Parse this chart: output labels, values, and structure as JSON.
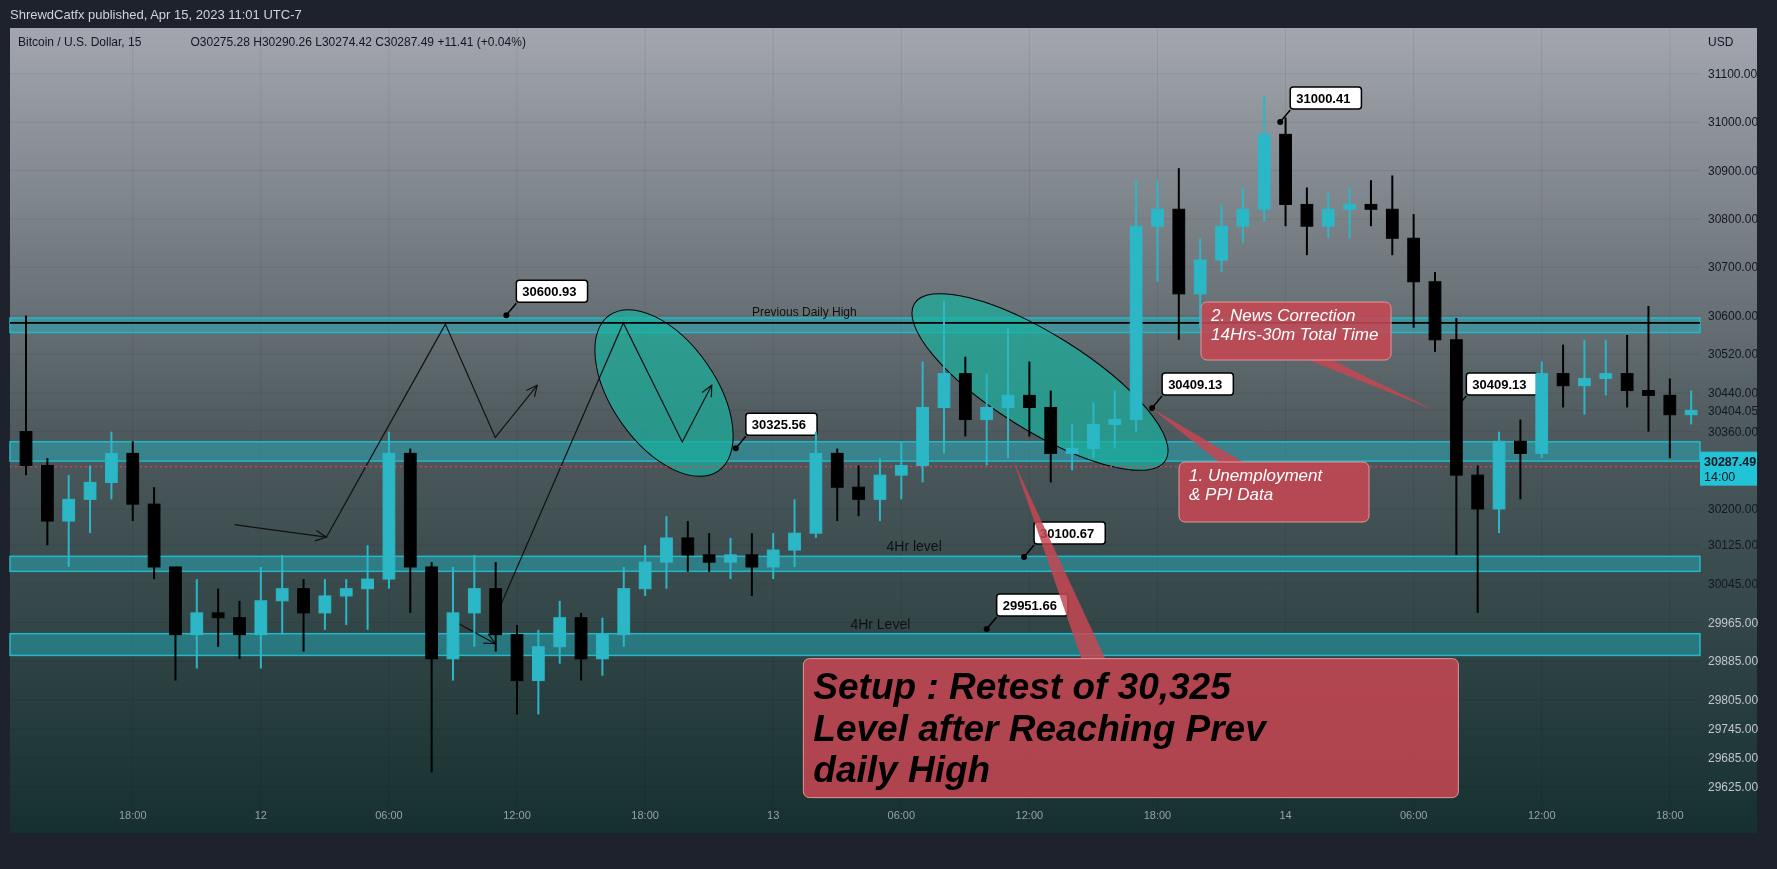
{
  "chart_data": {
    "type": "candlestick",
    "title": "Bitcoin / U.S. Dollar, 15",
    "subtitle": "O30275.28 H30290.26 L30274.42 C30287.49 +11.41 (+0.04%)",
    "ylabel": "USD",
    "x": [
      "2023-04-11T13:00",
      "2023-04-11T14:00",
      "2023-04-11T15:00",
      "2023-04-11T16:00",
      "2023-04-11T17:00",
      "2023-04-11T18:00",
      "2023-04-11T19:00",
      "2023-04-11T20:00",
      "2023-04-11T21:00",
      "2023-04-11T22:00",
      "2023-04-11T23:00",
      "2023-04-12T00:00",
      "2023-04-12T01:00",
      "2023-04-12T02:00",
      "2023-04-12T03:00",
      "2023-04-12T04:00",
      "2023-04-12T05:00",
      "2023-04-12T06:00",
      "2023-04-12T07:00",
      "2023-04-12T08:00",
      "2023-04-12T09:00",
      "2023-04-12T10:00",
      "2023-04-12T11:00",
      "2023-04-12T12:00",
      "2023-04-12T13:00",
      "2023-04-12T14:00",
      "2023-04-12T15:00",
      "2023-04-12T16:00",
      "2023-04-12T17:00",
      "2023-04-12T18:00",
      "2023-04-12T19:00",
      "2023-04-12T20:00",
      "2023-04-12T21:00",
      "2023-04-12T22:00",
      "2023-04-12T23:00",
      "2023-04-13T00:00",
      "2023-04-13T01:00",
      "2023-04-13T02:00",
      "2023-04-13T03:00",
      "2023-04-13T04:00",
      "2023-04-13T05:00",
      "2023-04-13T06:00",
      "2023-04-13T07:00",
      "2023-04-13T08:00",
      "2023-04-13T09:00",
      "2023-04-13T10:00",
      "2023-04-13T11:00",
      "2023-04-13T12:00",
      "2023-04-13T13:00",
      "2023-04-13T14:00",
      "2023-04-13T15:00",
      "2023-04-13T16:00",
      "2023-04-13T17:00",
      "2023-04-13T18:00",
      "2023-04-13T19:00",
      "2023-04-13T20:00",
      "2023-04-13T21:00",
      "2023-04-13T22:00",
      "2023-04-13T23:00",
      "2023-04-14T00:00",
      "2023-04-14T01:00",
      "2023-04-14T02:00",
      "2023-04-14T03:00",
      "2023-04-14T04:00",
      "2023-04-14T05:00",
      "2023-04-14T06:00",
      "2023-04-14T07:00",
      "2023-04-14T08:00",
      "2023-04-14T09:00",
      "2023-04-14T10:00",
      "2023-04-14T11:00",
      "2023-04-14T12:00",
      "2023-04-14T13:00",
      "2023-04-14T14:00",
      "2023-04-14T15:00",
      "2023-04-14T16:00",
      "2023-04-14T17:00",
      "2023-04-14T18:00",
      "2023-04-14T19:00"
    ],
    "ohlc": [
      [
        30360,
        30600,
        30270,
        30290
      ],
      [
        30290,
        30305,
        30125,
        30175
      ],
      [
        30175,
        30270,
        30080,
        30220
      ],
      [
        30220,
        30290,
        30150,
        30255
      ],
      [
        30255,
        30360,
        30220,
        30315
      ],
      [
        30315,
        30340,
        30175,
        30210
      ],
      [
        30210,
        30245,
        30055,
        30080
      ],
      [
        30080,
        30080,
        29845,
        29940
      ],
      [
        29940,
        30055,
        29870,
        29985
      ],
      [
        29985,
        30035,
        29915,
        29975
      ],
      [
        29975,
        30010,
        29890,
        29940
      ],
      [
        29940,
        30080,
        29870,
        30010
      ],
      [
        30010,
        30105,
        29940,
        30035
      ],
      [
        30035,
        30055,
        29905,
        29985
      ],
      [
        29985,
        30055,
        29950,
        30020
      ],
      [
        30020,
        30055,
        29960,
        30035
      ],
      [
        30035,
        30125,
        29950,
        30055
      ],
      [
        30055,
        30360,
        30035,
        30315
      ],
      [
        30315,
        30325,
        29985,
        30080
      ],
      [
        30080,
        30090,
        29655,
        29890
      ],
      [
        29890,
        30080,
        29845,
        29985
      ],
      [
        29985,
        30105,
        29915,
        30035
      ],
      [
        30035,
        30090,
        29905,
        29940
      ],
      [
        29940,
        29960,
        29775,
        29845
      ],
      [
        29845,
        29950,
        29775,
        29915
      ],
      [
        29915,
        30010,
        29880,
        29975
      ],
      [
        29975,
        29985,
        29845,
        29890
      ],
      [
        29890,
        29975,
        29855,
        29940
      ],
      [
        29940,
        30080,
        29915,
        30035
      ],
      [
        30035,
        30125,
        30020,
        30090
      ],
      [
        30090,
        30185,
        30035,
        30140
      ],
      [
        30140,
        30175,
        30070,
        30105
      ],
      [
        30105,
        30150,
        30070,
        30090
      ],
      [
        30090,
        30140,
        30055,
        30105
      ],
      [
        30105,
        30150,
        30020,
        30080
      ],
      [
        30080,
        30150,
        30055,
        30115
      ],
      [
        30115,
        30220,
        30080,
        30150
      ],
      [
        30150,
        30360,
        30140,
        30315
      ],
      [
        30315,
        30325,
        30175,
        30245
      ],
      [
        30245,
        30290,
        30185,
        30220
      ],
      [
        30220,
        30305,
        30175,
        30270
      ],
      [
        30270,
        30340,
        30220,
        30290
      ],
      [
        30290,
        30505,
        30255,
        30410
      ],
      [
        30410,
        30630,
        30315,
        30480
      ],
      [
        30480,
        30515,
        30350,
        30385
      ],
      [
        30385,
        30480,
        30290,
        30410
      ],
      [
        30410,
        30575,
        30305,
        30435
      ],
      [
        30435,
        30505,
        30350,
        30410
      ],
      [
        30410,
        30445,
        30255,
        30315
      ],
      [
        30315,
        30375,
        30280,
        30325
      ],
      [
        30325,
        30420,
        30305,
        30375
      ],
      [
        30375,
        30445,
        30325,
        30385
      ],
      [
        30385,
        30880,
        30360,
        30785
      ],
      [
        30785,
        30880,
        30670,
        30820
      ],
      [
        30820,
        30905,
        30550,
        30645
      ],
      [
        30645,
        30760,
        30575,
        30715
      ],
      [
        30715,
        30830,
        30690,
        30785
      ],
      [
        30785,
        30865,
        30750,
        30820
      ],
      [
        30820,
        31055,
        30795,
        30975
      ],
      [
        30975,
        31010,
        30785,
        30830
      ],
      [
        30830,
        30865,
        30725,
        30785
      ],
      [
        30785,
        30855,
        30760,
        30820
      ],
      [
        30820,
        30865,
        30760,
        30830
      ],
      [
        30830,
        30880,
        30785,
        30820
      ],
      [
        30820,
        30890,
        30725,
        30760
      ],
      [
        30760,
        30810,
        30575,
        30670
      ],
      [
        30670,
        30690,
        30525,
        30550
      ],
      [
        30550,
        30595,
        30105,
        30270
      ],
      [
        30270,
        30290,
        29985,
        30200
      ],
      [
        30200,
        30360,
        30150,
        30340
      ],
      [
        30340,
        30385,
        30220,
        30315
      ],
      [
        30315,
        30505,
        30305,
        30480
      ],
      [
        30480,
        30540,
        30410,
        30455
      ],
      [
        30455,
        30550,
        30395,
        30470
      ],
      [
        30470,
        30550,
        30435,
        30480
      ],
      [
        30480,
        30560,
        30410,
        30445
      ],
      [
        30445,
        30620,
        30360,
        30435
      ],
      [
        30435,
        30470,
        30305,
        30395
      ],
      [
        30395,
        30445,
        30375,
        30404.05
      ]
    ],
    "colors": [
      "#000000",
      "#000000",
      "#2bb7c6",
      "#2bb7c6",
      "#2bb7c6",
      "#000000",
      "#000000",
      "#000000",
      "#2bb7c6",
      "#000000",
      "#000000",
      "#2bb7c6",
      "#2bb7c6",
      "#000000",
      "#2bb7c6",
      "#2bb7c6",
      "#2bb7c6",
      "#2bb7c6",
      "#000000",
      "#000000",
      "#2bb7c6",
      "#2bb7c6",
      "#000000",
      "#000000",
      "#2bb7c6",
      "#2bb7c6",
      "#000000",
      "#2bb7c6",
      "#2bb7c6",
      "#2bb7c6",
      "#2bb7c6",
      "#000000",
      "#000000",
      "#2bb7c6",
      "#000000",
      "#2bb7c6",
      "#2bb7c6",
      "#2bb7c6",
      "#000000",
      "#000000",
      "#2bb7c6",
      "#2bb7c6",
      "#2bb7c6",
      "#2bb7c6",
      "#000000",
      "#2bb7c6",
      "#2bb7c6",
      "#000000",
      "#000000",
      "#2bb7c6",
      "#2bb7c6",
      "#2bb7c6",
      "#2bb7c6",
      "#2bb7c6",
      "#000000",
      "#2bb7c6",
      "#2bb7c6",
      "#2bb7c6",
      "#2bb7c6",
      "#000000",
      "#000000",
      "#2bb7c6",
      "#2bb7c6",
      "#000000",
      "#000000",
      "#000000",
      "#000000",
      "#000000",
      "#000000",
      "#2bb7c6",
      "#000000",
      "#2bb7c6",
      "#000000",
      "#2bb7c6",
      "#2bb7c6",
      "#000000",
      "#000000",
      "#000000",
      "#2bb7c6"
    ],
    "xlim": [
      "2023-04-11T12:15",
      "2023-04-14T22:05"
    ],
    "xticks": [
      {
        "value": "2023-04-11T18:00",
        "label": "18:00"
      },
      {
        "value": "2023-04-12T00:00",
        "label": "12"
      },
      {
        "value": "2023-04-12T06:00",
        "label": "06:00"
      },
      {
        "value": "2023-04-12T12:00",
        "label": "12:00"
      },
      {
        "value": "2023-04-12T18:00",
        "label": "18:00"
      },
      {
        "value": "2023-04-13T00:00",
        "label": "13"
      },
      {
        "value": "2023-04-13T06:00",
        "label": "06:00"
      },
      {
        "value": "2023-04-13T12:00",
        "label": "12:00"
      },
      {
        "value": "2023-04-13T18:00",
        "label": "18:00"
      },
      {
        "value": "2023-04-14T00:00",
        "label": "14"
      },
      {
        "value": "2023-04-14T06:00",
        "label": "06:00"
      },
      {
        "value": "2023-04-14T12:00",
        "label": "12:00"
      },
      {
        "value": "2023-04-14T18:00",
        "label": "18:00"
      }
    ],
    "ylim": [
      29540,
      31195
    ],
    "yticks": [
      {
        "value": 29625,
        "label": "29625.00"
      },
      {
        "value": 29685,
        "label": "29685.00"
      },
      {
        "value": 29745,
        "label": "29745.00"
      },
      {
        "value": 29805,
        "label": "29805.00"
      },
      {
        "value": 29885,
        "label": "29885.00"
      },
      {
        "value": 29965,
        "label": "29965.00"
      },
      {
        "value": 30045,
        "label": "30045.00"
      },
      {
        "value": 30125,
        "label": "30125.00"
      },
      {
        "value": 30200,
        "label": "30200.00"
      },
      {
        "value": 30360,
        "label": "30360.00"
      },
      {
        "value": 30404.05,
        "label": "30404.05"
      },
      {
        "value": 30440,
        "label": "30440.00"
      },
      {
        "value": 30520,
        "label": "30520.00"
      },
      {
        "value": 30600,
        "label": "30600.00"
      },
      {
        "value": 30700,
        "label": "30700.00"
      },
      {
        "value": 30800,
        "label": "30800.00"
      },
      {
        "value": 30900,
        "label": "30900.00"
      },
      {
        "value": 31000,
        "label": "31000.00"
      },
      {
        "value": 31100,
        "label": "31100.00"
      }
    ],
    "grid": true,
    "bands": [
      {
        "axis": "y",
        "from": 30565,
        "to": 30595,
        "color": "#22b8c8"
      },
      {
        "axis": "y",
        "from": 30299,
        "to": 30339,
        "color": "#22b8c8"
      },
      {
        "axis": "y",
        "from": 30071,
        "to": 30102,
        "label": "4Hr level",
        "color": "#22b8c8"
      },
      {
        "axis": "y",
        "from": 29897,
        "to": 29942,
        "label": "4Hr Level",
        "color": "#22b8c8"
      }
    ],
    "ref_lines": [
      {
        "axis": "y",
        "value": 30585,
        "label": "Previous Daily High",
        "color": "#000000",
        "line_style": "solid"
      },
      {
        "axis": "y",
        "value": 30287.49,
        "label": "30287.49 14:00",
        "color": "#f23645",
        "line_style": "dotted"
      }
    ],
    "annotations": [
      "ShrewdCatfx published, Apr 15, 2023 11:01 UTC-7",
      {
        "text": "31000.41",
        "x": "2023-04-13T23:45",
        "y": 31000.41
      },
      {
        "text": "30600.93",
        "x": "2023-04-12T11:30",
        "y": 30600.93
      },
      {
        "text": "30325.56",
        "x": "2023-04-12T22:15",
        "y": 30325.56
      },
      {
        "text": "30409.13",
        "x": "2023-04-13T17:45",
        "y": 30409.13
      },
      {
        "text": "30409.13",
        "x": "2023-04-14T08:00",
        "y": 30409.13
      },
      {
        "text": "30100.67",
        "x": "2023-04-13T11:45",
        "y": 30100.67
      },
      {
        "text": "29951.66",
        "x": "2023-04-13T10:00",
        "y": 29951.66
      },
      "1. Unemployment & PPI Data",
      "2. News Correction 14Hrs-30m Total Time",
      {
        "text": "Setup : Retest of 30,325 Level after Reaching Prev daily High",
        "x": "2023-04-13T11:15",
        "y": 30300
      }
    ]
  }
}
